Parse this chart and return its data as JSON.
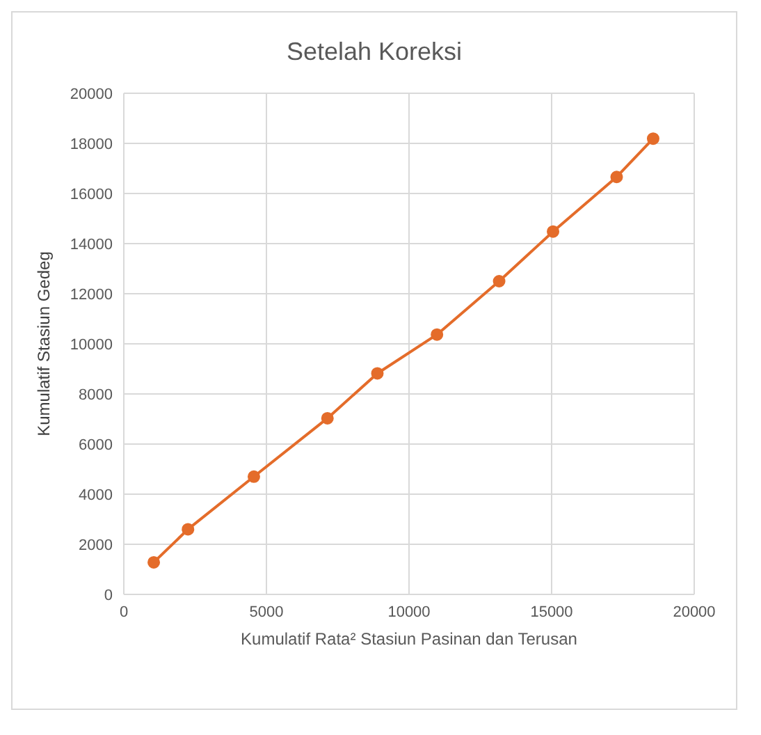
{
  "chart_data": {
    "type": "line",
    "title": "Setelah Koreksi",
    "xlabel": "Kumulatif Rata² Stasiun Pasinan dan Terusan",
    "ylabel": "Kumulatif Stasiun Gedeg",
    "x": [
      1050,
      2250,
      4560,
      7140,
      8890,
      10980,
      13160,
      15050,
      17280,
      18560
    ],
    "series": [
      {
        "color": "#e46c2a",
        "values": [
          1280,
          2600,
          4700,
          7030,
          8820,
          10370,
          12500,
          14480,
          16660,
          18190
        ]
      }
    ],
    "xlim": [
      0,
      20000
    ],
    "xticks": [
      0,
      5000,
      10000,
      15000,
      20000
    ],
    "ylim": [
      0,
      20000
    ],
    "yticks": [
      0,
      2000,
      4000,
      6000,
      8000,
      10000,
      12000,
      14000,
      16000,
      18000,
      20000
    ],
    "grid": true,
    "marker": "circle",
    "line_style": "solid",
    "legend": false
  }
}
